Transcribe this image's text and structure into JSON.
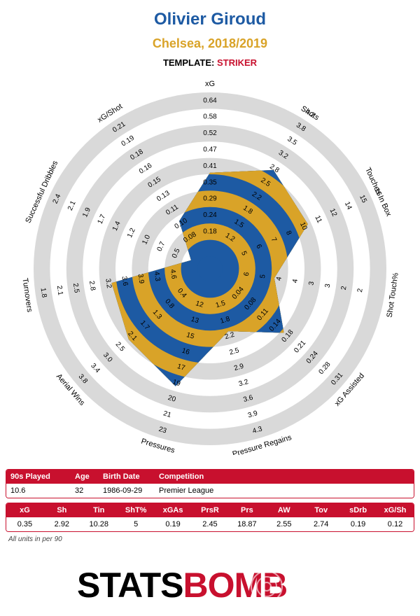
{
  "header": {
    "player": "Olivier Giroud",
    "team_season": "Chelsea, 2018/2019",
    "template_label": "TEMPLATE:",
    "template_name": "STRIKER"
  },
  "chart_data": {
    "type": "radar",
    "axes": [
      {
        "label": "xG",
        "ticks": [
          "0.18",
          "0.24",
          "0.29",
          "0.35",
          "0.41",
          "0.47",
          "0.52",
          "0.58",
          "0.64"
        ],
        "value": 0.35,
        "reversed": false
      },
      {
        "label": "Shots",
        "ticks": [
          "1.2",
          "1.5",
          "1.8",
          "2.2",
          "2.5",
          "2.8",
          "3.2",
          "3.5",
          "3.8",
          "4.2"
        ],
        "value": 2.92,
        "reversed": false
      },
      {
        "label": "Touches In Box",
        "ticks": [
          "5",
          "6",
          "7",
          "8",
          "10",
          "11",
          "12",
          "14",
          "15",
          "16"
        ],
        "value": 10.28,
        "reversed": false
      },
      {
        "label": "Shot Touch%",
        "ticks": [
          "6",
          "5",
          "4",
          "4",
          "3",
          "3",
          "2",
          "2"
        ],
        "value": 5,
        "reversed": true
      },
      {
        "label": "xG Assisted",
        "ticks": [
          "0.04",
          "0.08",
          "0.11",
          "0.14",
          "0.18",
          "0.21",
          "0.24",
          "0.28",
          "0.31"
        ],
        "value": 0.19,
        "reversed": false
      },
      {
        "label": "Pressure Regains",
        "ticks": [
          "1.5",
          "1.8",
          "2.2",
          "2.5",
          "2.9",
          "3.2",
          "3.6",
          "3.9",
          "4.3"
        ],
        "value": 2.45,
        "reversed": false
      },
      {
        "label": "Pressures",
        "ticks": [
          "12",
          "13",
          "15",
          "16",
          "17",
          "19",
          "20",
          "21",
          "23"
        ],
        "value": 18.87,
        "reversed": false
      },
      {
        "label": "Aerial Wins",
        "ticks": [
          "0.4",
          "0.8",
          "1.3",
          "1.7",
          "2.1",
          "2.5",
          "3.0",
          "3.4",
          "3.8"
        ],
        "value": 2.55,
        "reversed": false
      },
      {
        "label": "Turnovers",
        "ticks": [
          "4.6",
          "4.3",
          "3.9",
          "3.6",
          "3.2",
          "2.8",
          "2.5",
          "2.1",
          "1.8"
        ],
        "value": 2.74,
        "reversed": true
      },
      {
        "label": "Successful Dribbles",
        "ticks": [
          "0.5",
          "0.7",
          "1.0",
          "1.2",
          "1.4",
          "1.7",
          "1.9",
          "2.1",
          "2.4"
        ],
        "value": 0.19,
        "reversed": false
      },
      {
        "label": "xG/Shot",
        "ticks": [
          "0.08",
          "0.10",
          "0.11",
          "0.13",
          "0.15",
          "0.16",
          "0.18",
          "0.19",
          "0.21"
        ],
        "value": 0.12,
        "reversed": false
      }
    ],
    "fractions": [
      0.51,
      0.64,
      0.58,
      0.32,
      0.52,
      0.32,
      0.67,
      0.58,
      0.53,
      0.05,
      0.27
    ],
    "colors": {
      "fill_blue": "#1d5aa3",
      "fill_gold": "#d9a328",
      "ring_grey": "#d9d9d9"
    }
  },
  "info_table": {
    "headers": [
      "90s Played",
      "Age",
      "Birth Date",
      "Competition"
    ],
    "values": [
      "10.6",
      "32",
      "1986-09-29",
      "Premier League"
    ]
  },
  "stats_table": {
    "headers": [
      "xG",
      "Sh",
      "Tin",
      "ShT%",
      "xGAs",
      "PrsR",
      "Prs",
      "AW",
      "Tov",
      "sDrb",
      "xG/Sh"
    ],
    "values": [
      "0.35",
      "2.92",
      "10.28",
      "5",
      "0.19",
      "2.45",
      "18.87",
      "2.55",
      "2.74",
      "0.19",
      "0.12"
    ]
  },
  "footnote": "All units in per 90",
  "logo": {
    "part1": "STATS",
    "part2": "BOMB"
  }
}
